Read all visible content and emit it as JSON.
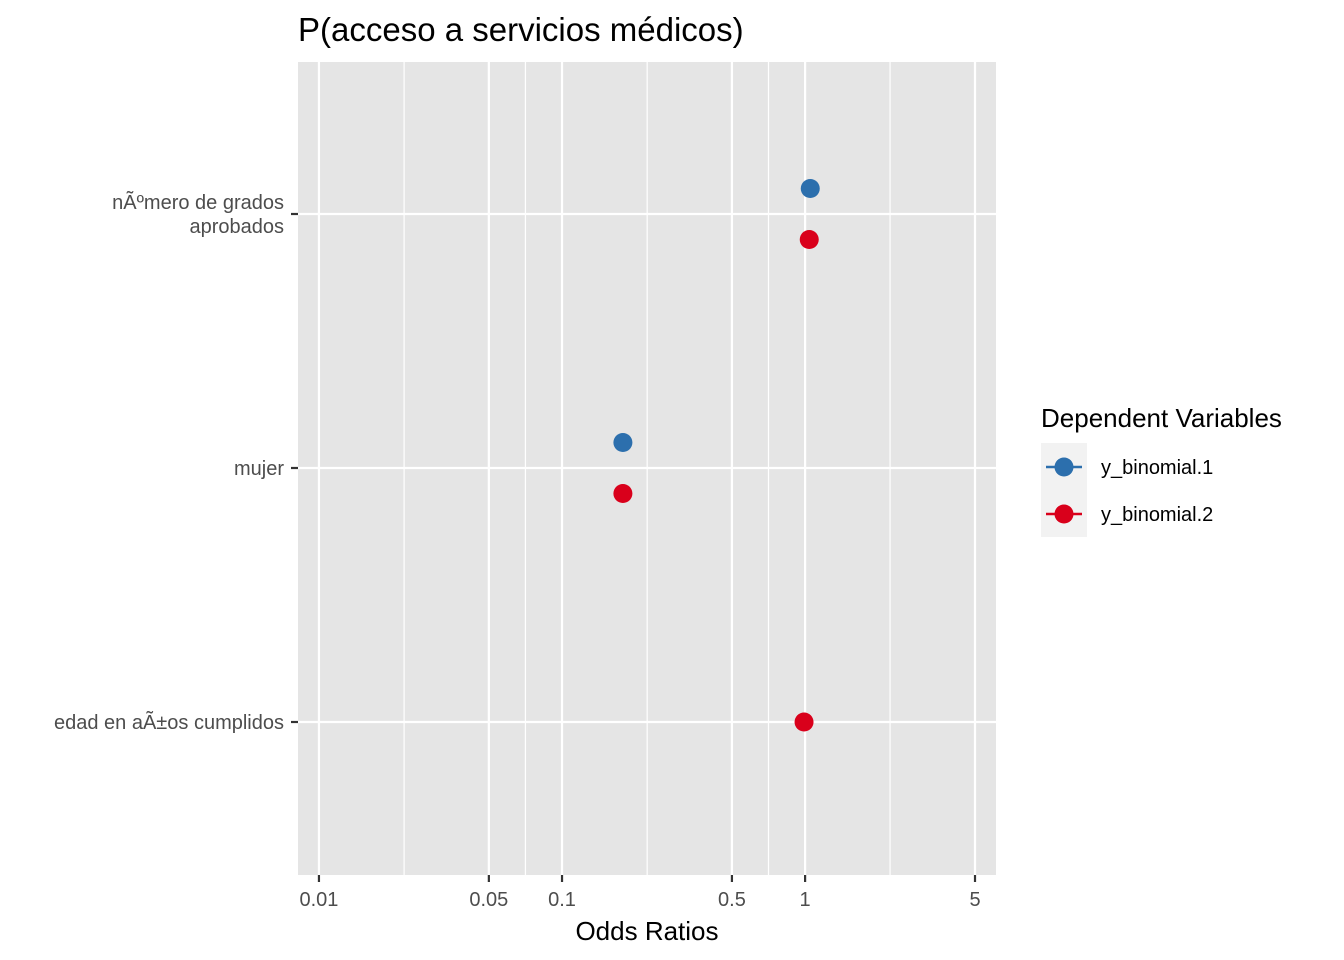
{
  "chart_data": {
    "type": "scatter",
    "title": "P(acceso a servicios médicos)",
    "xlabel": "Odds Ratios",
    "ylabel": "",
    "x_scale": "log10",
    "xlim": [
      0.0082,
      6.1
    ],
    "x_ticks": [
      0.01,
      0.05,
      0.1,
      0.5,
      1,
      5
    ],
    "x_tick_labels": [
      "0.01",
      "0.05",
      "0.1",
      "0.5",
      "1",
      "5"
    ],
    "x_minor_gridlines": [
      0.0224,
      0.0707,
      0.224,
      0.707,
      2.236
    ],
    "categories": [
      "nÃºmero de grados\naprobados",
      "mujer",
      "edad en aÃ±os cumplidos"
    ],
    "grid": true,
    "legend": {
      "title": "Dependent Variables",
      "placement": "right"
    },
    "series": [
      {
        "name": "y_binomial.1",
        "color": "#2c6fad",
        "points": [
          {
            "category": "nÃºmero de grados\naprobados",
            "x": 1.05
          },
          {
            "category": "mujer",
            "x": 0.178
          }
        ]
      },
      {
        "name": "y_binomial.2",
        "color": "#d9001b",
        "points": [
          {
            "category": "nÃºmero de grados\naprobados",
            "x": 1.04
          },
          {
            "category": "mujer",
            "x": 0.178
          },
          {
            "category": "edad en aÃ±os cumplidos",
            "x": 0.99
          }
        ]
      }
    ]
  }
}
